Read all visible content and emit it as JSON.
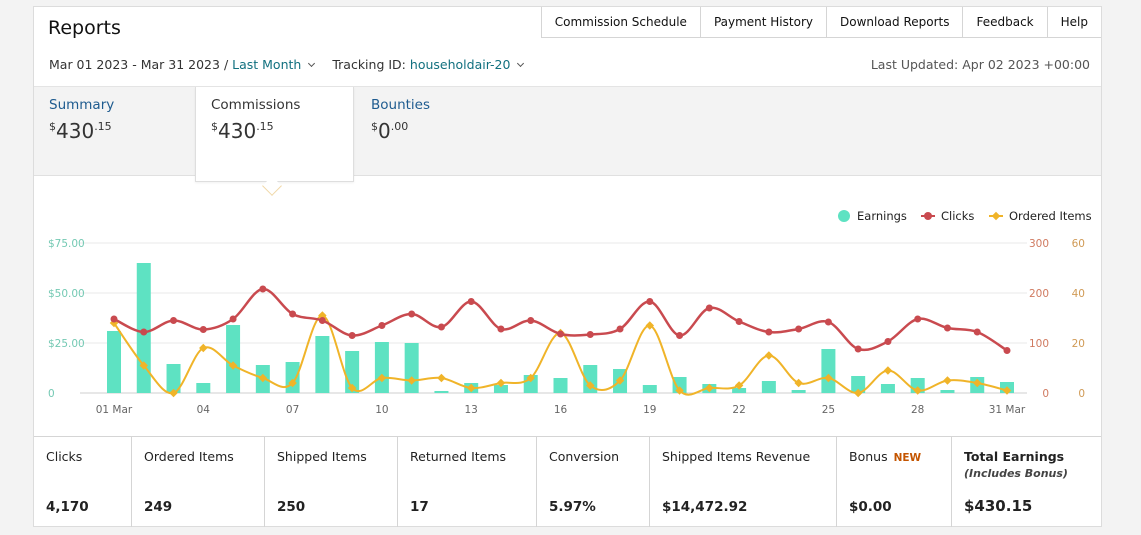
{
  "header": {
    "title": "Reports",
    "links": [
      "Commission Schedule",
      "Payment History",
      "Download Reports",
      "Feedback",
      "Help"
    ]
  },
  "filters": {
    "date_range": "Mar 01 2023 - Mar 31 2023",
    "separator": " / ",
    "period": "Last Month",
    "tracking_label": "Tracking ID: ",
    "tracking_id": "householdair-20",
    "last_updated": "Last Updated: Apr 02 2023 +00:00"
  },
  "tabs": [
    {
      "label": "Summary",
      "currency": "$",
      "main": "430",
      "decimal": ".15"
    },
    {
      "label": "Commissions",
      "currency": "$",
      "main": "430",
      "decimal": ".15"
    },
    {
      "label": "Bounties",
      "currency": "$",
      "main": "0",
      "decimal": ".00"
    }
  ],
  "stats": {
    "clicks": {
      "label": "Clicks",
      "value": "4,170"
    },
    "ordered": {
      "label": "Ordered Items",
      "value": "249"
    },
    "shipped": {
      "label": "Shipped Items",
      "value": "250"
    },
    "returned": {
      "label": "Returned Items",
      "value": "17"
    },
    "conversion": {
      "label": "Conversion",
      "value": "5.97%"
    },
    "revenue": {
      "label": "Shipped Items Revenue",
      "value": "$14,472.92"
    },
    "bonus": {
      "label": "Bonus",
      "badge": "NEW",
      "value": "$0.00"
    },
    "total": {
      "label": "Total Earnings",
      "sub": "(Includes Bonus)",
      "value": "$430.15"
    }
  },
  "colors": {
    "earnings": "#5ee2c2",
    "clicks": "#c94a4f",
    "ordered": "#f0b429"
  },
  "chart_data": {
    "type": "bar",
    "x_ticks": [
      "01 Mar",
      "04",
      "07",
      "10",
      "13",
      "16",
      "19",
      "22",
      "25",
      "28",
      "31 Mar"
    ],
    "days": [
      1,
      2,
      3,
      4,
      5,
      6,
      7,
      8,
      9,
      10,
      11,
      12,
      13,
      14,
      15,
      16,
      17,
      18,
      19,
      20,
      21,
      22,
      23,
      24,
      25,
      26,
      27,
      28,
      29,
      30,
      31
    ],
    "legend": [
      "Earnings",
      "Clicks",
      "Ordered Items"
    ],
    "legend_position": "top-right",
    "y_left_ticks": [
      "$75.00",
      "$50.00",
      "$25.00",
      "0"
    ],
    "y_right_clicks_ticks": [
      "300",
      "200",
      "100",
      "0"
    ],
    "y_right_items_ticks": [
      "60",
      "40",
      "20",
      "0"
    ],
    "ylim_earnings": [
      0,
      75
    ],
    "ylim_clicks": [
      0,
      300
    ],
    "ylim_items": [
      0,
      60
    ],
    "series": [
      {
        "name": "Earnings",
        "kind": "bar",
        "values": [
          31,
          65,
          14.5,
          5,
          34,
          14,
          15.5,
          28.5,
          21,
          25.5,
          25,
          1,
          5,
          4,
          9,
          7.5,
          14,
          12,
          4,
          8,
          4.5,
          2.5,
          6,
          1.5,
          22,
          8.5,
          4.5,
          7.5,
          1.5,
          8,
          5.5
        ]
      },
      {
        "name": "Clicks",
        "kind": "line",
        "values": [
          148,
          122,
          145,
          127,
          148,
          208,
          158,
          145,
          115,
          135,
          158,
          132,
          183,
          128,
          145,
          118,
          117,
          128,
          183,
          115,
          170,
          143,
          122,
          128,
          142,
          88,
          103,
          148,
          130,
          122,
          85
        ]
      },
      {
        "name": "Ordered Items",
        "kind": "line",
        "values": [
          28,
          11,
          0,
          18,
          11,
          6,
          4,
          31,
          2,
          6,
          5,
          6,
          2,
          4,
          6,
          24,
          3,
          5,
          27,
          1,
          2,
          3,
          15,
          4,
          6,
          0,
          9,
          1,
          5,
          4,
          1
        ]
      }
    ]
  }
}
